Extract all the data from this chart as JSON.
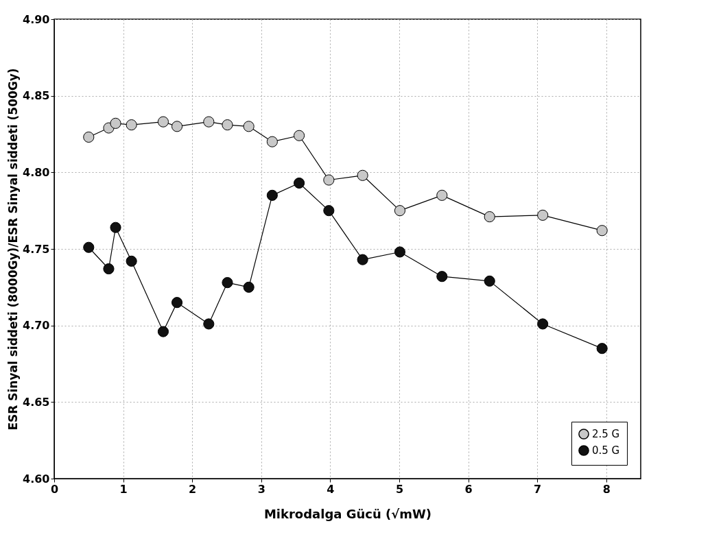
{
  "chart_data": {
    "type": "line",
    "xlabel": "Mikrodalga Gücü (√mW)",
    "ylabel": "ESR Sinyal siddeti (8000Gy)/ESR Sinyal siddeti (500Gy)",
    "x": [
      0.5,
      0.79,
      0.89,
      1.12,
      1.58,
      1.78,
      2.24,
      2.51,
      2.82,
      3.16,
      3.55,
      3.98,
      4.47,
      5.01,
      5.62,
      6.31,
      7.08,
      7.94
    ],
    "series": [
      {
        "name": "2.5 G",
        "color": "#c8c8c8",
        "values": [
          4.823,
          4.829,
          4.832,
          4.831,
          4.833,
          4.83,
          4.833,
          4.831,
          4.83,
          4.82,
          4.824,
          4.795,
          4.798,
          4.775,
          4.785,
          4.771,
          4.772,
          4.762
        ]
      },
      {
        "name": "0.5 G",
        "color": "#111111",
        "values": [
          4.751,
          4.737,
          4.764,
          4.742,
          4.696,
          4.715,
          4.701,
          4.728,
          4.725,
          4.785,
          4.793,
          4.775,
          4.743,
          4.748,
          4.732,
          4.729,
          4.701,
          4.685
        ]
      }
    ],
    "xlim": [
      0,
      8.5
    ],
    "xticks": [
      0,
      1,
      2,
      3,
      4,
      5,
      6,
      7,
      8
    ],
    "ylim": [
      4.6,
      4.9
    ],
    "yticks": [
      {
        "value": 4.6,
        "label": "4.60"
      },
      {
        "value": 4.65,
        "label": "4.65"
      },
      {
        "value": 4.7,
        "label": "4.70"
      },
      {
        "value": 4.75,
        "label": "4.75"
      },
      {
        "value": 4.8,
        "label": "4.80"
      },
      {
        "value": 4.85,
        "label": "4.85"
      },
      {
        "value": 4.9,
        "label": "4.90"
      }
    ],
    "grid": true,
    "legend": "bottom right",
    "marker": "circle",
    "line_style": "solid"
  }
}
